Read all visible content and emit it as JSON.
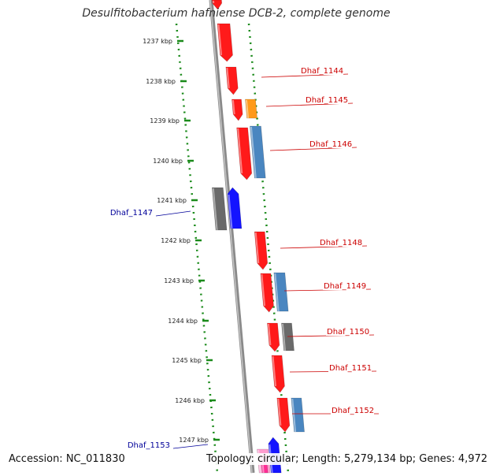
{
  "title": "Desulfitobacterium hafniense DCB-2, complete genome",
  "accession": "Accession: NC_011830",
  "stats": "Topology: circular; Length: 5,279,134 bp; Genes: 4,972",
  "colors": {
    "red": "#ff1a1a",
    "orange": "#ff9a1a",
    "steelblue": "#4a86c0",
    "gray": "#6a6a6a",
    "blue": "#1414ff",
    "pink": "#ff9ccf",
    "magenta": "#ff2d95",
    "label_red": "#cc0000",
    "label_blue": "#000099",
    "ruler_green": "#1a8a1a"
  },
  "ruler": [
    {
      "label": "1237 kbp"
    },
    {
      "label": "1238 kbp"
    },
    {
      "label": "1239 kbp"
    },
    {
      "label": "1240 kbp"
    },
    {
      "label": "1241 kbp"
    },
    {
      "label": "1242 kbp"
    },
    {
      "label": "1243 kbp"
    },
    {
      "label": "1244 kbp"
    },
    {
      "label": "1245 kbp"
    },
    {
      "label": "1246 kbp"
    },
    {
      "label": "1247 kbp"
    }
  ],
  "gene_labels": [
    {
      "text": "Dhaf_1144",
      "color": "label_red"
    },
    {
      "text": "Dhaf_1145",
      "color": "label_red"
    },
    {
      "text": "Dhaf_1146",
      "color": "label_red"
    },
    {
      "text": "Dhaf_1147",
      "color": "label_blue"
    },
    {
      "text": "Dhaf_1148",
      "color": "label_red"
    },
    {
      "text": "Dhaf_1149",
      "color": "label_red"
    },
    {
      "text": "Dhaf_1150",
      "color": "label_red"
    },
    {
      "text": "Dhaf_1151",
      "color": "label_red"
    },
    {
      "text": "Dhaf_1152",
      "color": "label_red"
    },
    {
      "text": "Dhaf_1153",
      "color": "label_blue"
    }
  ]
}
